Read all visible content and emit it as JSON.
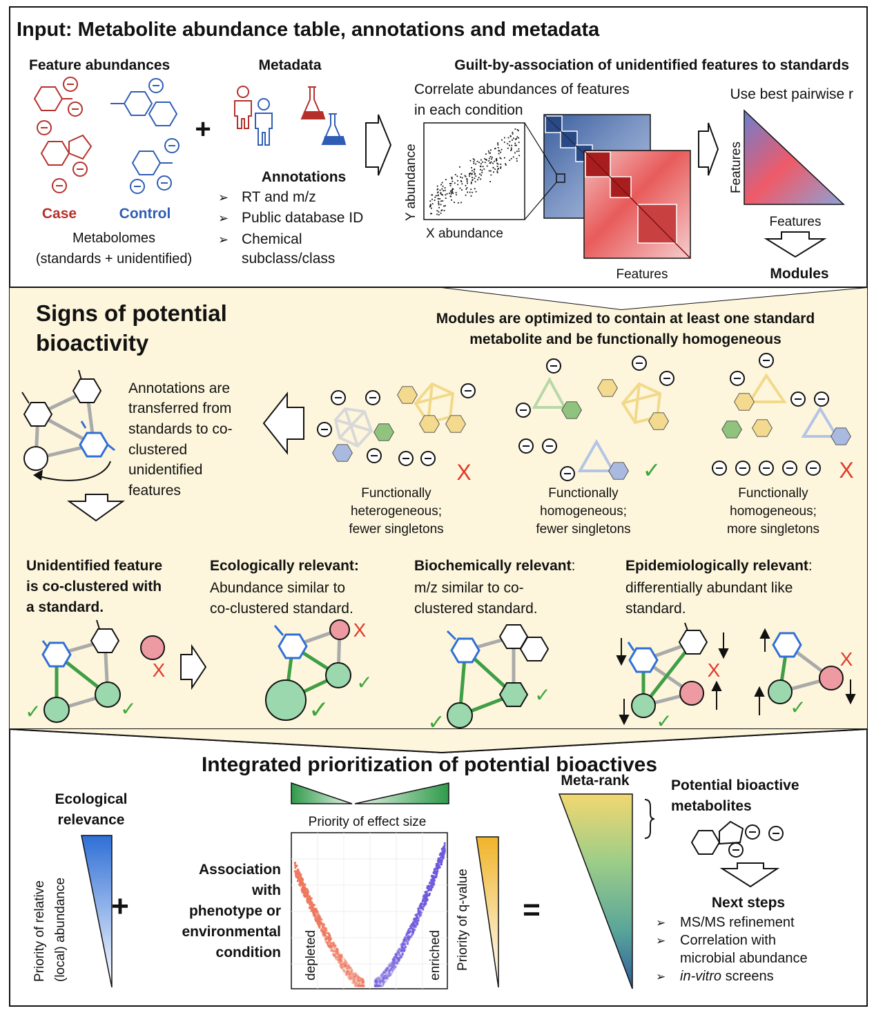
{
  "input": {
    "title": "Input: Metabolite abundance table, annotations and metadata",
    "feature_abundances": "Feature abundances",
    "case": "Case",
    "control": "Control",
    "metabolomes_1": "Metabolomes",
    "metabolomes_2": "(standards + unidentified)",
    "metadata": "Metadata",
    "annotations": "Annotations",
    "annotation_items": [
      "RT and m/z",
      "Public database ID",
      "Chemical",
      "subclass/class"
    ],
    "guilt_title": "Guilt-by-association of unidentified features to standards",
    "correlate_1": "Correlate abundances of features",
    "correlate_2": "in each condition",
    "y_abundance": "Y abundance",
    "x_abundance": "X abundance",
    "features_matrix": "Features",
    "use_best": "Use best pairwise r",
    "features_tri_y": "Features",
    "features_tri_x": "Features",
    "modules": "Modules",
    "plus": "+"
  },
  "signs": {
    "title_1": "Signs of potential",
    "title_2": "bioactivity",
    "modules_opt_1": "Modules are optimized to contain at least one standard",
    "modules_opt_2": "metabolite and be functionally homogeneous",
    "transfer": [
      "Annotations are",
      "transferred from",
      "standards to co-",
      "clustered",
      "unidentified",
      "features"
    ],
    "cases": [
      {
        "l1": "Functionally",
        "l2": "heterogeneous;",
        "l3": "fewer singletons",
        "mark": "X"
      },
      {
        "l1": "Functionally",
        "l2": "homogeneous;",
        "l3": "fewer singletons",
        "mark": "✓"
      },
      {
        "l1": "Functionally",
        "l2": "homogeneous;",
        "l3": "more singletons",
        "mark": "X"
      }
    ],
    "criteria": [
      {
        "b1": "Unidentified feature",
        "b2": "is co-clustered with",
        "b3": "a standard.",
        "n1": ""
      },
      {
        "b1": "Ecologically relevant:",
        "n1": "Abundance similar to",
        "n2": "co-clustered standard."
      },
      {
        "b1": "Biochemically relevant",
        "colon": ":",
        "n1": "m/z similar to co-",
        "n2": "clustered standard."
      },
      {
        "b1": "Epidemiologically relevant",
        "colon": ":",
        "n1": "differentially abundant like",
        "n2": "standard."
      }
    ]
  },
  "integrated": {
    "title": "Integrated prioritization of potential bioactives",
    "eco_1": "Ecological",
    "eco_2": "relevance",
    "priority_rel_1": "Priority of relative",
    "priority_rel_2": "(local) abundance",
    "plus": "+",
    "assoc": [
      "Association",
      "with",
      "phenotype or",
      "environmental",
      "condition"
    ],
    "effect_size": "Priority of effect size",
    "depleted": "depleted",
    "enriched": "enriched",
    "q_value": "Priority of q-value",
    "equals": "=",
    "meta_rank": "Meta-rank",
    "potential_1": "Potential bioactive",
    "potential_2": "metabolites",
    "next_steps": "Next steps",
    "steps": [
      "MS/MS refinement",
      "Correlation with",
      "microbial abundance",
      "in-vitro",
      " screens"
    ]
  },
  "colors": {
    "case_red": "#b5302a",
    "control_blue": "#2f5db5",
    "panel_bg": "#fdf6dc",
    "green_node": "#9bd8ad",
    "red_node": "#ee9aa3",
    "check_green": "#3aa63a",
    "x_red": "#e03a2a"
  }
}
